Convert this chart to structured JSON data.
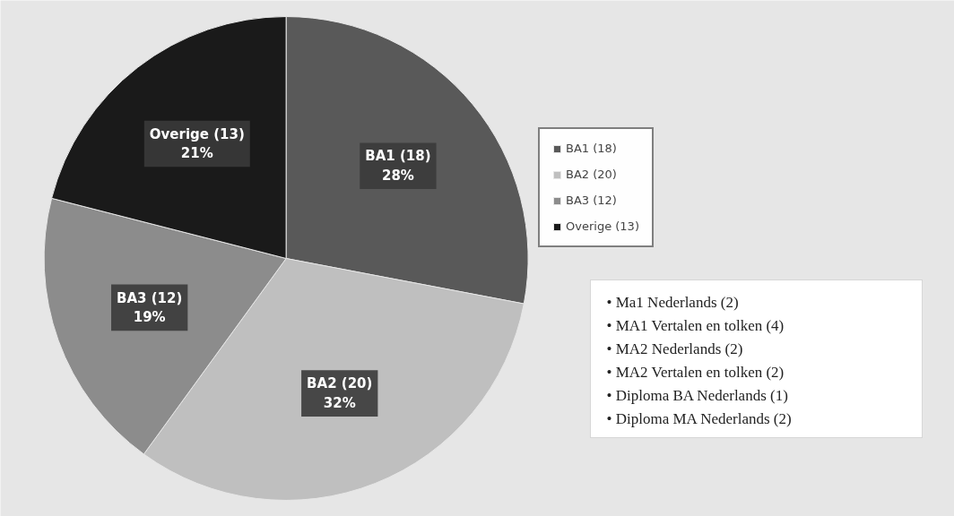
{
  "chart_data": {
    "type": "pie",
    "categories": [
      "BA1 (18)",
      "BA2 (20)",
      "BA3 (12)",
      "Overige (13)"
    ],
    "values": [
      28,
      32,
      19,
      21
    ],
    "colors": [
      "#595959",
      "#bfbfbf",
      "#8c8c8c",
      "#1a1a1a"
    ],
    "value_labels": [
      "28%",
      "32%",
      "19%",
      "21%"
    ],
    "legend": "right",
    "annotations": [
      "• Ma1 Nederlands (2)",
      "• MA1 Vertalen en tolken (4)",
      "• MA2 Nederlands (2)",
      "• MA2 Vertalen en tolken (2)",
      "• Diploma BA Nederlands (1)",
      "• Diploma MA Nederlands (2)"
    ]
  }
}
